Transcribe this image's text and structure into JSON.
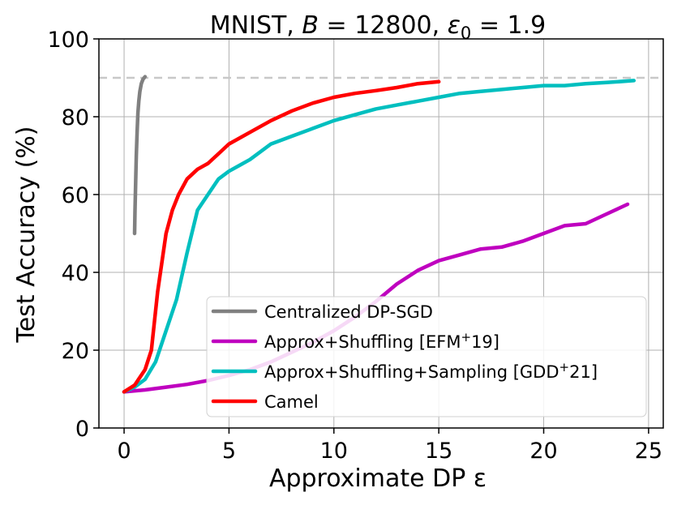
{
  "chart_data": {
    "type": "line",
    "title": "MNIST, B = 12800, ε0 = 1.9",
    "title_parts": {
      "prefix": "MNIST, ",
      "b_symbol": "B",
      "b_value": " = 12800, ",
      "eps_symbol": "ε",
      "eps_sub": "0",
      "eps_value": " = 1.9"
    },
    "xlabel": "Approximate DP ε",
    "ylabel": "Test Accuracy (%)",
    "xlim": [
      -1.2,
      25.7
    ],
    "ylim": [
      0,
      100
    ],
    "xticks": [
      0,
      5,
      10,
      15,
      20,
      25
    ],
    "yticks": [
      0,
      20,
      40,
      60,
      80,
      100
    ],
    "grid": true,
    "legend_position": "lower-right",
    "reference_line": {
      "y": 90,
      "style": "dashed",
      "color": "#c8c8c8"
    },
    "series": [
      {
        "name": "Centralized DP-SGD",
        "color": "#808080",
        "x": [
          0.5,
          0.52,
          0.55,
          0.58,
          0.62,
          0.66,
          0.7,
          0.75,
          0.82,
          0.9,
          1.0
        ],
        "y": [
          50,
          56,
          63,
          70,
          76,
          81,
          84,
          86.5,
          88.5,
          89.6,
          90.3
        ]
      },
      {
        "name": "Approx+Shuffling [EFM+19]",
        "name_parts": {
          "text": "Approx+Shuffling [EFM",
          "sup": "+",
          "tail": "19]"
        },
        "color": "#bf00bf",
        "x": [
          0,
          1,
          2,
          3,
          4,
          5,
          6,
          7,
          8,
          9,
          10,
          11,
          12,
          13,
          14,
          15,
          16,
          17,
          18,
          19,
          20,
          21,
          22,
          23,
          24
        ],
        "y": [
          9.3,
          9.8,
          10.5,
          11.2,
          12.2,
          13.5,
          15.0,
          17.0,
          19.5,
          22.0,
          25.0,
          28.5,
          32.5,
          37.0,
          40.5,
          43.0,
          44.5,
          46.0,
          46.5,
          48.0,
          50.0,
          52.0,
          52.5,
          55.0,
          57.5
        ]
      },
      {
        "name": "Approx+Shuffling+Sampling [GDD+21]",
        "name_parts": {
          "text": "Approx+Shuffling+Sampling [GDD",
          "sup": "+",
          "tail": "21]"
        },
        "color": "#00bfbf",
        "x": [
          0,
          0.5,
          1.0,
          1.5,
          2.0,
          2.5,
          3.0,
          3.5,
          4.0,
          4.5,
          5.0,
          5.5,
          6.0,
          7.0,
          8.0,
          9.0,
          10.0,
          11.0,
          12.0,
          13.0,
          14.0,
          15.0,
          16.0,
          17.0,
          18.0,
          19.0,
          20.0,
          21.0,
          22.0,
          23.0,
          24.3
        ],
        "y": [
          9.3,
          10.5,
          12.5,
          17,
          25,
          33,
          45,
          56,
          60,
          64,
          66,
          67.5,
          69,
          73,
          75,
          77,
          79,
          80.5,
          82,
          83,
          84,
          85,
          86,
          86.5,
          87,
          87.5,
          88,
          88,
          88.5,
          88.8,
          89.3
        ]
      },
      {
        "name": "Camel",
        "color": "#ff0000",
        "x": [
          0,
          0.5,
          1.0,
          1.3,
          1.6,
          2.0,
          2.3,
          2.6,
          3.0,
          3.5,
          4.0,
          4.5,
          5.0,
          5.5,
          6.0,
          7.0,
          8.0,
          9.0,
          10.0,
          11.0,
          12.0,
          13.0,
          14.0,
          15.0
        ],
        "y": [
          9.3,
          11,
          15,
          20,
          35,
          50,
          56,
          60,
          64,
          66.5,
          68,
          70.5,
          73,
          74.5,
          76,
          79,
          81.5,
          83.5,
          85,
          86,
          86.7,
          87.5,
          88.5,
          89
        ]
      }
    ]
  }
}
